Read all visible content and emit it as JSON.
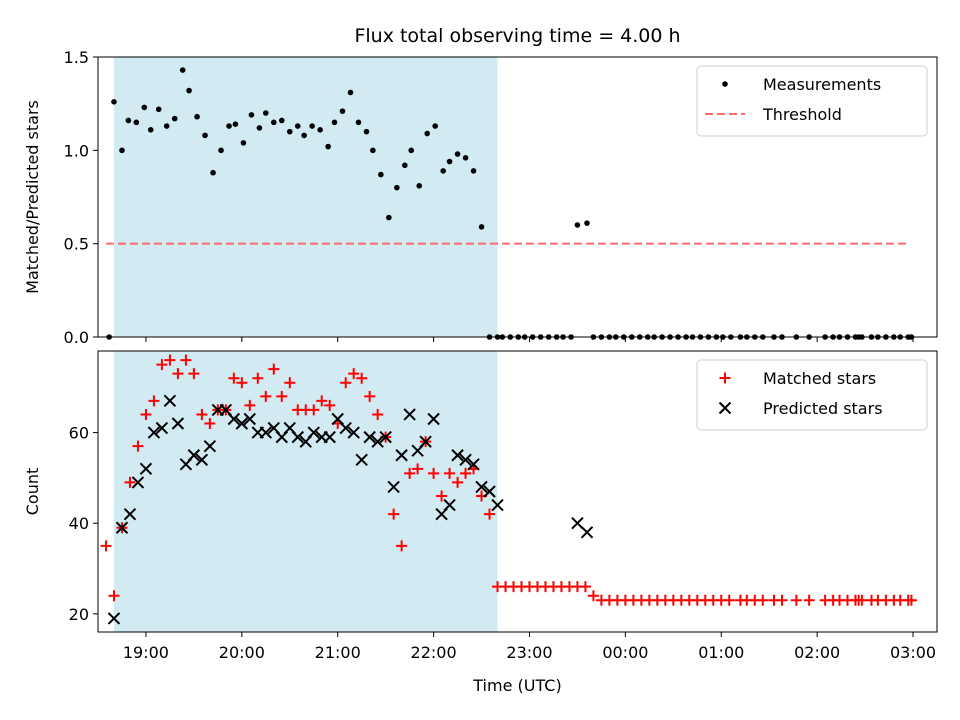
{
  "chart_data": [
    {
      "type": "scatter",
      "title": "Flux total observing time = 4.00 h",
      "xlabel": "",
      "ylabel": "Matched/Predicted stars",
      "ylim": [
        0,
        1.5
      ],
      "yticks": [
        "0.0",
        "0.5",
        "1.0",
        "1.5"
      ],
      "xlim": [
        "18:30",
        "03:15"
      ],
      "xticks": [
        "19:00",
        "20:00",
        "21:00",
        "22:00",
        "23:00",
        "00:00",
        "01:00",
        "02:00",
        "03:00"
      ],
      "shaded_interval": [
        "18:40",
        "22:40"
      ],
      "shade_color": "#add8e6",
      "legend_position": "top-right",
      "series": [
        {
          "name": "Measurements",
          "color": "#000000",
          "marker": "dot",
          "x": [
            "18:37",
            "18:40",
            "18:45",
            "18:49",
            "18:54",
            "18:59",
            "19:03",
            "19:08",
            "19:13",
            "19:18",
            "19:23",
            "19:27",
            "19:32",
            "19:37",
            "19:42",
            "19:47",
            "19:52",
            "19:56",
            "20:01",
            "20:06",
            "20:11",
            "20:15",
            "20:20",
            "20:25",
            "20:30",
            "20:35",
            "20:39",
            "20:44",
            "20:49",
            "20:54",
            "20:58",
            "21:03",
            "21:08",
            "21:13",
            "21:18",
            "21:22",
            "21:27",
            "21:32",
            "21:37",
            "21:42",
            "21:46",
            "21:51",
            "21:56",
            "22:01",
            "22:06",
            "22:10",
            "22:15",
            "22:20",
            "22:25",
            "22:30",
            "22:35",
            "22:40",
            "22:43",
            "22:48",
            "22:53",
            "22:57",
            "23:02",
            "23:07",
            "23:12",
            "23:17",
            "23:21",
            "23:26",
            "23:30",
            "23:36",
            "23:40",
            "23:45",
            "23:50",
            "23:54",
            "23:59",
            "00:04",
            "00:09",
            "00:14",
            "00:18",
            "00:23",
            "00:28",
            "00:33",
            "00:38",
            "00:42",
            "00:47",
            "00:52",
            "00:57",
            "01:01",
            "01:06",
            "01:12",
            "01:16",
            "01:21",
            "01:26",
            "01:33",
            "01:38",
            "01:47",
            "01:55",
            "02:05",
            "02:10",
            "02:14",
            "02:19",
            "02:24",
            "02:26",
            "02:28",
            "02:34",
            "02:38",
            "02:43",
            "02:48",
            "02:52",
            "02:57",
            "02:59"
          ],
          "y": [
            0.0,
            1.26,
            1.0,
            1.16,
            1.15,
            1.23,
            1.11,
            1.22,
            1.13,
            1.17,
            1.43,
            1.32,
            1.18,
            1.08,
            0.88,
            1.0,
            1.13,
            1.14,
            1.04,
            1.19,
            1.12,
            1.2,
            1.15,
            1.16,
            1.1,
            1.13,
            1.08,
            1.13,
            1.11,
            1.02,
            1.15,
            1.21,
            1.31,
            1.15,
            1.1,
            1.0,
            0.87,
            0.64,
            0.8,
            0.92,
            1.0,
            0.81,
            1.09,
            1.13,
            0.89,
            0.94,
            0.98,
            0.96,
            0.89,
            0.59,
            0.0,
            0.0,
            0.0,
            0.0,
            0.0,
            0.0,
            0.0,
            0.0,
            0.0,
            0.0,
            0.0,
            0.0,
            0.6,
            0.61,
            0.0,
            0.0,
            0.0,
            0.0,
            0.0,
            0.0,
            0.0,
            0.0,
            0.0,
            0.0,
            0.0,
            0.0,
            0.0,
            0.0,
            0.0,
            0.0,
            0.0,
            0.0,
            0.0,
            0.0,
            0.0,
            0.0,
            0.0,
            0.0,
            0.0,
            0.0,
            0.0,
            0.0,
            0.0,
            0.0,
            0.0,
            0.0,
            0.0,
            0.0,
            0.0,
            0.0,
            0.0,
            0.0,
            0.0,
            0.0,
            0.0
          ]
        },
        {
          "name": "Threshold",
          "color": "#ff6b6b",
          "marker": "dashed-line",
          "x": [
            "18:35",
            "02:57"
          ],
          "y": [
            0.5,
            0.5
          ]
        }
      ]
    },
    {
      "type": "scatter",
      "title": "",
      "xlabel": "Time (UTC)",
      "ylabel": "Count",
      "ylim": [
        16,
        78
      ],
      "yticks": [
        "20",
        "40",
        "60"
      ],
      "xlim": [
        "18:30",
        "03:15"
      ],
      "xticks": [
        "19:00",
        "20:00",
        "21:00",
        "22:00",
        "23:00",
        "00:00",
        "01:00",
        "02:00",
        "03:00"
      ],
      "shaded_interval": [
        "18:40",
        "22:40"
      ],
      "shade_color": "#add8e6",
      "legend_position": "top-right",
      "series": [
        {
          "name": "Matched stars",
          "color": "#ff0000",
          "marker": "plus",
          "x": [
            "18:35",
            "18:40",
            "18:45",
            "18:50",
            "18:55",
            "19:00",
            "19:05",
            "19:10",
            "19:15",
            "19:20",
            "19:25",
            "19:30",
            "19:35",
            "19:40",
            "19:45",
            "19:50",
            "19:55",
            "20:00",
            "20:05",
            "20:10",
            "20:15",
            "20:20",
            "20:25",
            "20:30",
            "20:35",
            "20:40",
            "20:45",
            "20:50",
            "20:55",
            "21:00",
            "21:05",
            "21:10",
            "21:15",
            "21:20",
            "21:25",
            "21:30",
            "21:35",
            "21:40",
            "21:45",
            "21:50",
            "21:55",
            "22:00",
            "22:05",
            "22:10",
            "22:15",
            "22:20",
            "22:25",
            "22:30",
            "22:35",
            "22:40",
            "22:45",
            "22:50",
            "22:55",
            "23:00",
            "23:05",
            "23:10",
            "23:15",
            "23:20",
            "23:25",
            "23:30",
            "23:35",
            "23:40",
            "23:45",
            "23:50",
            "23:55",
            "00:00",
            "00:05",
            "00:10",
            "00:15",
            "00:20",
            "00:25",
            "00:30",
            "00:35",
            "00:40",
            "00:45",
            "00:50",
            "00:55",
            "01:00",
            "01:05",
            "01:12",
            "01:16",
            "01:21",
            "01:26",
            "01:33",
            "01:38",
            "01:47",
            "01:55",
            "02:05",
            "02:10",
            "02:14",
            "02:19",
            "02:24",
            "02:26",
            "02:28",
            "02:34",
            "02:38",
            "02:43",
            "02:48",
            "02:52",
            "02:57",
            "02:59"
          ],
          "y": [
            35,
            24,
            39,
            49,
            57,
            64,
            67,
            75,
            76,
            73,
            76,
            73,
            64,
            62,
            65,
            65,
            72,
            71,
            66,
            72,
            68,
            74,
            68,
            71,
            65,
            65,
            65,
            67,
            66,
            62,
            71,
            73,
            72,
            68,
            64,
            59,
            42,
            35,
            51,
            52,
            58,
            51,
            46,
            51,
            49,
            51,
            52,
            46,
            42,
            26,
            26,
            26,
            26,
            26,
            26,
            26,
            26,
            26,
            26,
            26,
            26,
            24,
            23,
            23,
            23,
            23,
            23,
            23,
            23,
            23,
            23,
            23,
            23,
            23,
            23,
            23,
            23,
            23,
            23,
            23,
            23,
            23,
            23,
            23,
            23,
            23,
            23,
            23,
            23,
            23,
            23,
            23,
            23,
            23,
            23,
            23,
            23,
            23,
            23,
            23,
            23
          ]
        },
        {
          "name": "Predicted stars",
          "color": "#000000",
          "marker": "x",
          "x": [
            "18:40",
            "18:45",
            "18:50",
            "18:55",
            "19:00",
            "19:05",
            "19:10",
            "19:15",
            "19:20",
            "19:25",
            "19:30",
            "19:35",
            "19:40",
            "19:45",
            "19:50",
            "19:55",
            "20:00",
            "20:05",
            "20:10",
            "20:15",
            "20:20",
            "20:25",
            "20:30",
            "20:35",
            "20:40",
            "20:45",
            "20:50",
            "20:55",
            "21:00",
            "21:05",
            "21:10",
            "21:15",
            "21:20",
            "21:25",
            "21:30",
            "21:35",
            "21:40",
            "21:45",
            "21:50",
            "21:55",
            "22:00",
            "22:05",
            "22:10",
            "22:15",
            "22:20",
            "22:25",
            "22:30",
            "22:35",
            "22:40",
            "23:30",
            "23:36"
          ],
          "y": [
            19,
            39,
            42,
            49,
            52,
            60,
            61,
            67,
            62,
            53,
            55,
            54,
            57,
            65,
            65,
            63,
            62,
            63,
            60,
            60,
            61,
            59,
            61,
            59,
            58,
            60,
            59,
            59,
            63,
            61,
            60,
            54,
            59,
            58,
            59,
            48,
            55,
            64,
            56,
            58,
            63,
            42,
            44,
            55,
            54,
            53,
            48,
            47,
            44,
            40,
            38
          ]
        }
      ]
    }
  ]
}
